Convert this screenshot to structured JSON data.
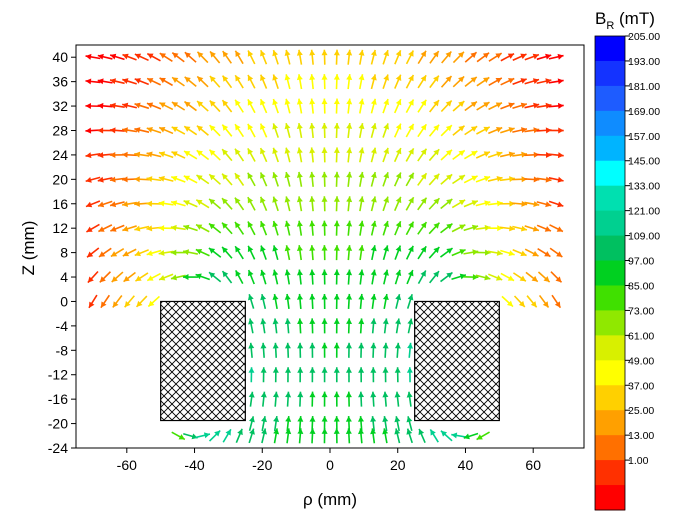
{
  "chart_data": {
    "type": "vector-field",
    "title": "",
    "xlabel": "ρ (mm)",
    "ylabel": "Z (mm)",
    "xlim": [
      -75,
      75
    ],
    "ylim": [
      -24,
      42
    ],
    "xticks": [
      -60,
      -40,
      -20,
      0,
      20,
      40,
      60
    ],
    "yticks": [
      40,
      36,
      32,
      28,
      24,
      20,
      16,
      12,
      8,
      4,
      0,
      -4,
      -8,
      -12,
      -16,
      -20,
      -24
    ],
    "grid": false,
    "arrow_grid": {
      "x_range": [
        -70,
        70
      ],
      "x_step": 3.6,
      "z_rows": [
        40,
        36,
        32,
        28,
        24,
        20,
        16,
        12,
        8,
        4,
        0,
        -4,
        -8,
        -12,
        -16,
        -20,
        -22
      ]
    },
    "coils": [
      {
        "rho_range": [
          -50,
          -25
        ],
        "z_range": [
          -19.5,
          0
        ],
        "hatch": "cross"
      },
      {
        "rho_range": [
          25,
          50
        ],
        "z_range": [
          -19.5,
          0
        ],
        "hatch": "cross"
      }
    ],
    "colorbar": {
      "title": "B",
      "title_subscript": "R",
      "title_unit": " (mT)",
      "ticks": [
        "205.00",
        "193.00",
        "181.00",
        "169.00",
        "157.00",
        "145.00",
        "133.00",
        "121.00",
        "109.00",
        "97.00",
        "85.00",
        "73.00",
        "61.00",
        "49.00",
        "37.00",
        "25.00",
        "13.00",
        "1.00"
      ],
      "colors": [
        "#0000ff",
        "#1433ff",
        "#1e5cff",
        "#0f8cff",
        "#00b4ff",
        "#00ffff",
        "#00e0b0",
        "#00d090",
        "#00c060",
        "#00d020",
        "#40e000",
        "#90e800",
        "#d8f000",
        "#ffff00",
        "#ffd000",
        "#ffa000",
        "#ff7000",
        "#ff3000",
        "#ff0000"
      ]
    }
  }
}
